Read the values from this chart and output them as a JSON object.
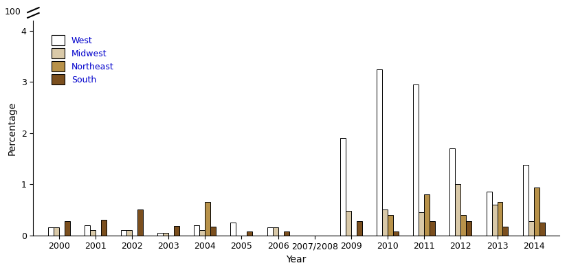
{
  "years": [
    "2000",
    "2001",
    "2002",
    "2003",
    "2004",
    "2005",
    "2006",
    "2007/2008",
    "2009",
    "2010",
    "2011",
    "2012",
    "2013",
    "2014"
  ],
  "west": [
    0.15,
    0.2,
    0.1,
    0.05,
    0.2,
    0.25,
    0.15,
    0.0,
    1.9,
    3.25,
    2.95,
    1.7,
    0.85,
    1.38
  ],
  "midwest": [
    0.15,
    0.1,
    0.1,
    0.05,
    0.1,
    0.0,
    0.15,
    0.0,
    0.48,
    0.5,
    0.45,
    1.0,
    0.6,
    0.28
  ],
  "northeast": [
    0.0,
    0.0,
    0.0,
    0.0,
    0.65,
    0.0,
    0.0,
    0.0,
    0.0,
    0.4,
    0.8,
    0.4,
    0.65,
    0.93
  ],
  "south": [
    0.28,
    0.3,
    0.5,
    0.18,
    0.17,
    0.07,
    0.07,
    0.0,
    0.28,
    0.07,
    0.28,
    0.28,
    0.17,
    0.25
  ],
  "colors": {
    "west": "#ffffff",
    "midwest": "#d9c9a8",
    "northeast": "#b8924a",
    "south": "#7b4f1e"
  },
  "edgecolor": "#000000",
  "ylabel": "Percentage",
  "xlabel": "Year",
  "ylim": [
    0,
    4.2
  ],
  "yticks": [
    0,
    1,
    2,
    3,
    4
  ],
  "legend_labels": [
    "West",
    "Midwest",
    "Northeast",
    "South"
  ],
  "background_color": "#ffffff",
  "bar_width": 0.15,
  "legend_text_color": "#0000aa"
}
